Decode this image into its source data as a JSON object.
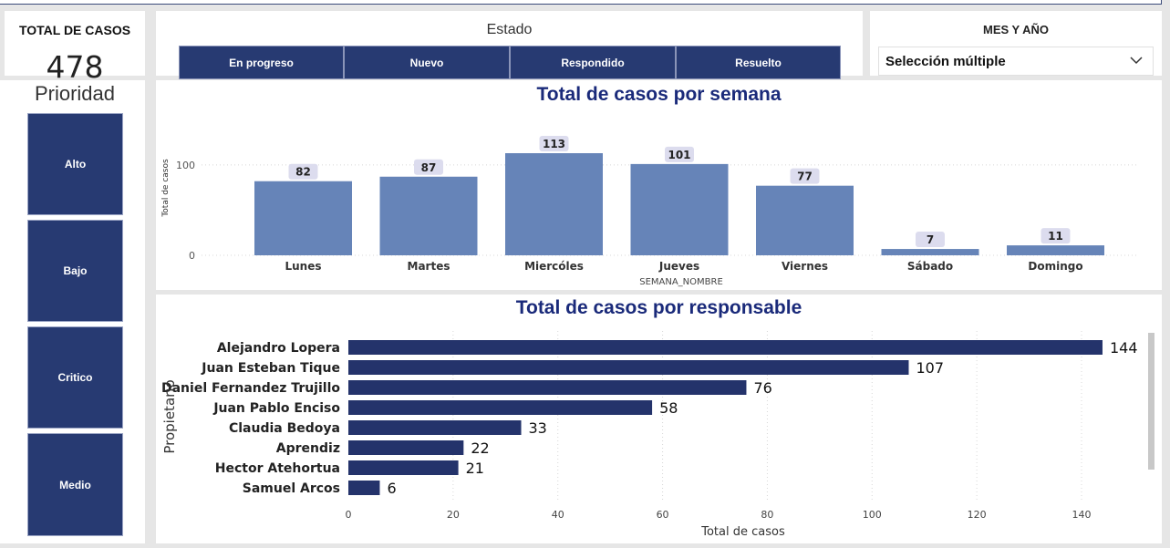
{
  "kpi": {
    "label": "TOTAL DE CASOS",
    "value": "478"
  },
  "estado": {
    "title": "Estado",
    "buttons": [
      "En progreso",
      "Nuevo",
      "Respondido",
      "Resuelto"
    ]
  },
  "mes": {
    "title": "MES Y AÑO",
    "selected": "Selección múltiple"
  },
  "prioridad": {
    "title": "Prioridad",
    "buttons": [
      "Alto",
      "Bajo",
      "Critico",
      "Medio"
    ]
  },
  "colors": {
    "navy": "#273a72",
    "bar_light": "#6684b8",
    "bar_dark": "#24336b",
    "title": "#1a2a7a"
  },
  "chart_data": [
    {
      "type": "bar",
      "title": "Total de casos por semana",
      "xlabel": "SEMANA_NOMBRE",
      "ylabel": "Total de casos",
      "categories": [
        "Lunes",
        "Martes",
        "Miercóles",
        "Jueves",
        "Viernes",
        "Sábado",
        "Domingo"
      ],
      "values": [
        82,
        87,
        113,
        101,
        77,
        7,
        11
      ],
      "yticks": [
        0,
        100
      ],
      "ylim": [
        0,
        113
      ]
    },
    {
      "type": "bar",
      "orientation": "horizontal",
      "title": "Total de casos por responsable",
      "xlabel": "Total de casos",
      "ylabel": "Propietario",
      "categories": [
        "Alejandro Lopera",
        "Juan Esteban Tique",
        "Daniel Fernandez Trujillo",
        "Juan Pablo Enciso",
        "Claudia Bedoya",
        "Aprendiz",
        "Hector Atehortua",
        "Samuel Arcos"
      ],
      "values": [
        144,
        107,
        76,
        58,
        33,
        22,
        21,
        6
      ],
      "xticks": [
        0,
        20,
        40,
        60,
        80,
        100,
        120,
        140
      ],
      "xlim": [
        0,
        150
      ]
    }
  ]
}
